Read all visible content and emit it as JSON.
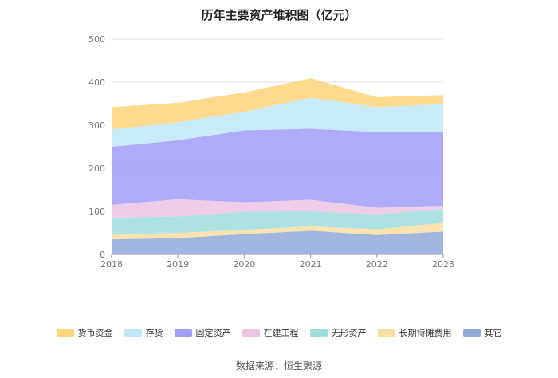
{
  "chart_data": {
    "type": "area",
    "stacked": true,
    "title": "历年主要资产堆积图（亿元）",
    "x": [
      "2018",
      "2019",
      "2020",
      "2021",
      "2022",
      "2023"
    ],
    "ylim": [
      0,
      500
    ],
    "yticks": [
      0,
      100,
      200,
      300,
      400,
      500
    ],
    "grid": true,
    "legend_position": "bottom",
    "series": [
      {
        "name": "其它",
        "color": "#90a9d8",
        "values": [
          35,
          38,
          47,
          55,
          45,
          53
        ]
      },
      {
        "name": "长期待摊费用",
        "color": "#fcdda0",
        "values": [
          10,
          12,
          10,
          10,
          13,
          20
        ]
      },
      {
        "name": "无形资产",
        "color": "#9ddedd",
        "values": [
          40,
          38,
          42,
          35,
          35,
          32
        ]
      },
      {
        "name": "在建工程",
        "color": "#ecc4e4",
        "values": [
          30,
          40,
          22,
          27,
          15,
          8
        ]
      },
      {
        "name": "固定资产",
        "color": "#a09ef8",
        "values": [
          135,
          137,
          167,
          165,
          176,
          172
        ]
      },
      {
        "name": "存货",
        "color": "#c0e8f8",
        "values": [
          40,
          42,
          43,
          72,
          58,
          64
        ]
      },
      {
        "name": "货币资金",
        "color": "#fdd47a",
        "values": [
          52,
          45,
          45,
          45,
          23,
          21
        ]
      }
    ],
    "legend_order": [
      "货币资金",
      "存货",
      "固定资产",
      "在建工程",
      "无形资产",
      "长期待摊费用",
      "其它"
    ],
    "source": "数据来源：恒生聚源"
  }
}
